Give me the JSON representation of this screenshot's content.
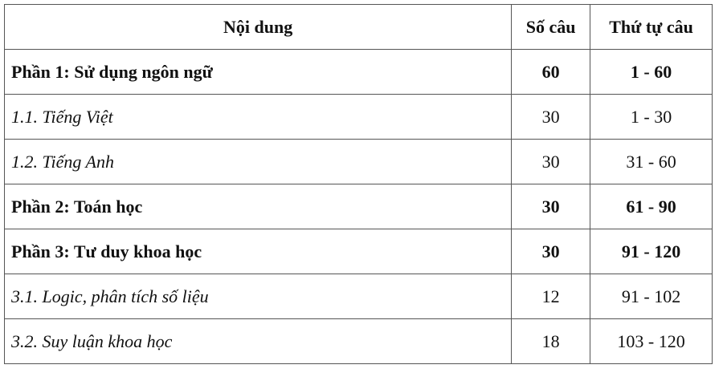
{
  "headers": [
    "Nội dung",
    "Số câu",
    "Thứ tự câu"
  ],
  "rows": [
    {
      "content": "Phần 1: Sử dụng ngôn ngữ",
      "count": "60",
      "order": "1 - 60",
      "style": "bold"
    },
    {
      "content": "1.1. Tiếng Việt",
      "count": "30",
      "order": "1 - 30",
      "style": "italic"
    },
    {
      "content": "1.2. Tiếng Anh",
      "count": "30",
      "order": "31 - 60",
      "style": "italic"
    },
    {
      "content": "Phần 2: Toán học",
      "count": "30",
      "order": "61 - 90",
      "style": "bold"
    },
    {
      "content": "Phần 3: Tư duy khoa học",
      "count": "30",
      "order": "91 - 120",
      "style": "bold"
    },
    {
      "content": "3.1. Logic, phân tích số liệu",
      "count": "12",
      "order": "91 - 102",
      "style": "italic"
    },
    {
      "content": "3.2. Suy luận khoa học",
      "count": "18",
      "order": "103 - 120",
      "style": "italic"
    }
  ]
}
